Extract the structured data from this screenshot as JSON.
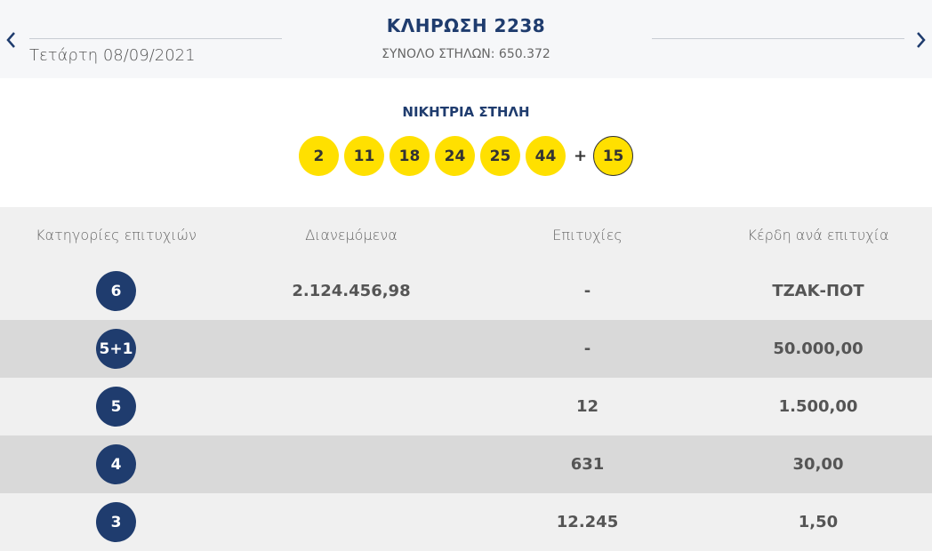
{
  "header": {
    "prev_icon": "chevron-left-icon",
    "next_icon": "chevron-right-icon",
    "date": "Τετάρτη 08/09/2021",
    "draw_title": "ΚΛΗΡΩΣΗ 2238",
    "total_columns": "ΣΥΝΟΛΟ ΣΤΗΛΩΝ: 650.372"
  },
  "winning": {
    "title": "ΝΙΚΗΤΡΙΑ ΣΤΗΛΗ",
    "numbers": [
      "2",
      "11",
      "18",
      "24",
      "25",
      "44"
    ],
    "plus": "+",
    "bonus": "15",
    "ball_color": "#ffe000"
  },
  "table": {
    "headers": [
      "Κατηγορίες επιτυχιών",
      "Διανεμόμενα",
      "Επιτυχίες",
      "Κέρδη ανά επιτυχία"
    ],
    "rows": [
      {
        "category": "6",
        "distributed": "2.124.456,98",
        "winners": "-",
        "prize": "ΤΖΑΚ-ΠΟΤ"
      },
      {
        "category": "5+1",
        "distributed": "",
        "winners": "-",
        "prize": "50.000,00"
      },
      {
        "category": "5",
        "distributed": "",
        "winners": "12",
        "prize": "1.500,00"
      },
      {
        "category": "4",
        "distributed": "",
        "winners": "631",
        "prize": "30,00"
      },
      {
        "category": "3",
        "distributed": "",
        "winners": "12.245",
        "prize": "1,50"
      }
    ],
    "badge_color": "#1f3c6e"
  }
}
